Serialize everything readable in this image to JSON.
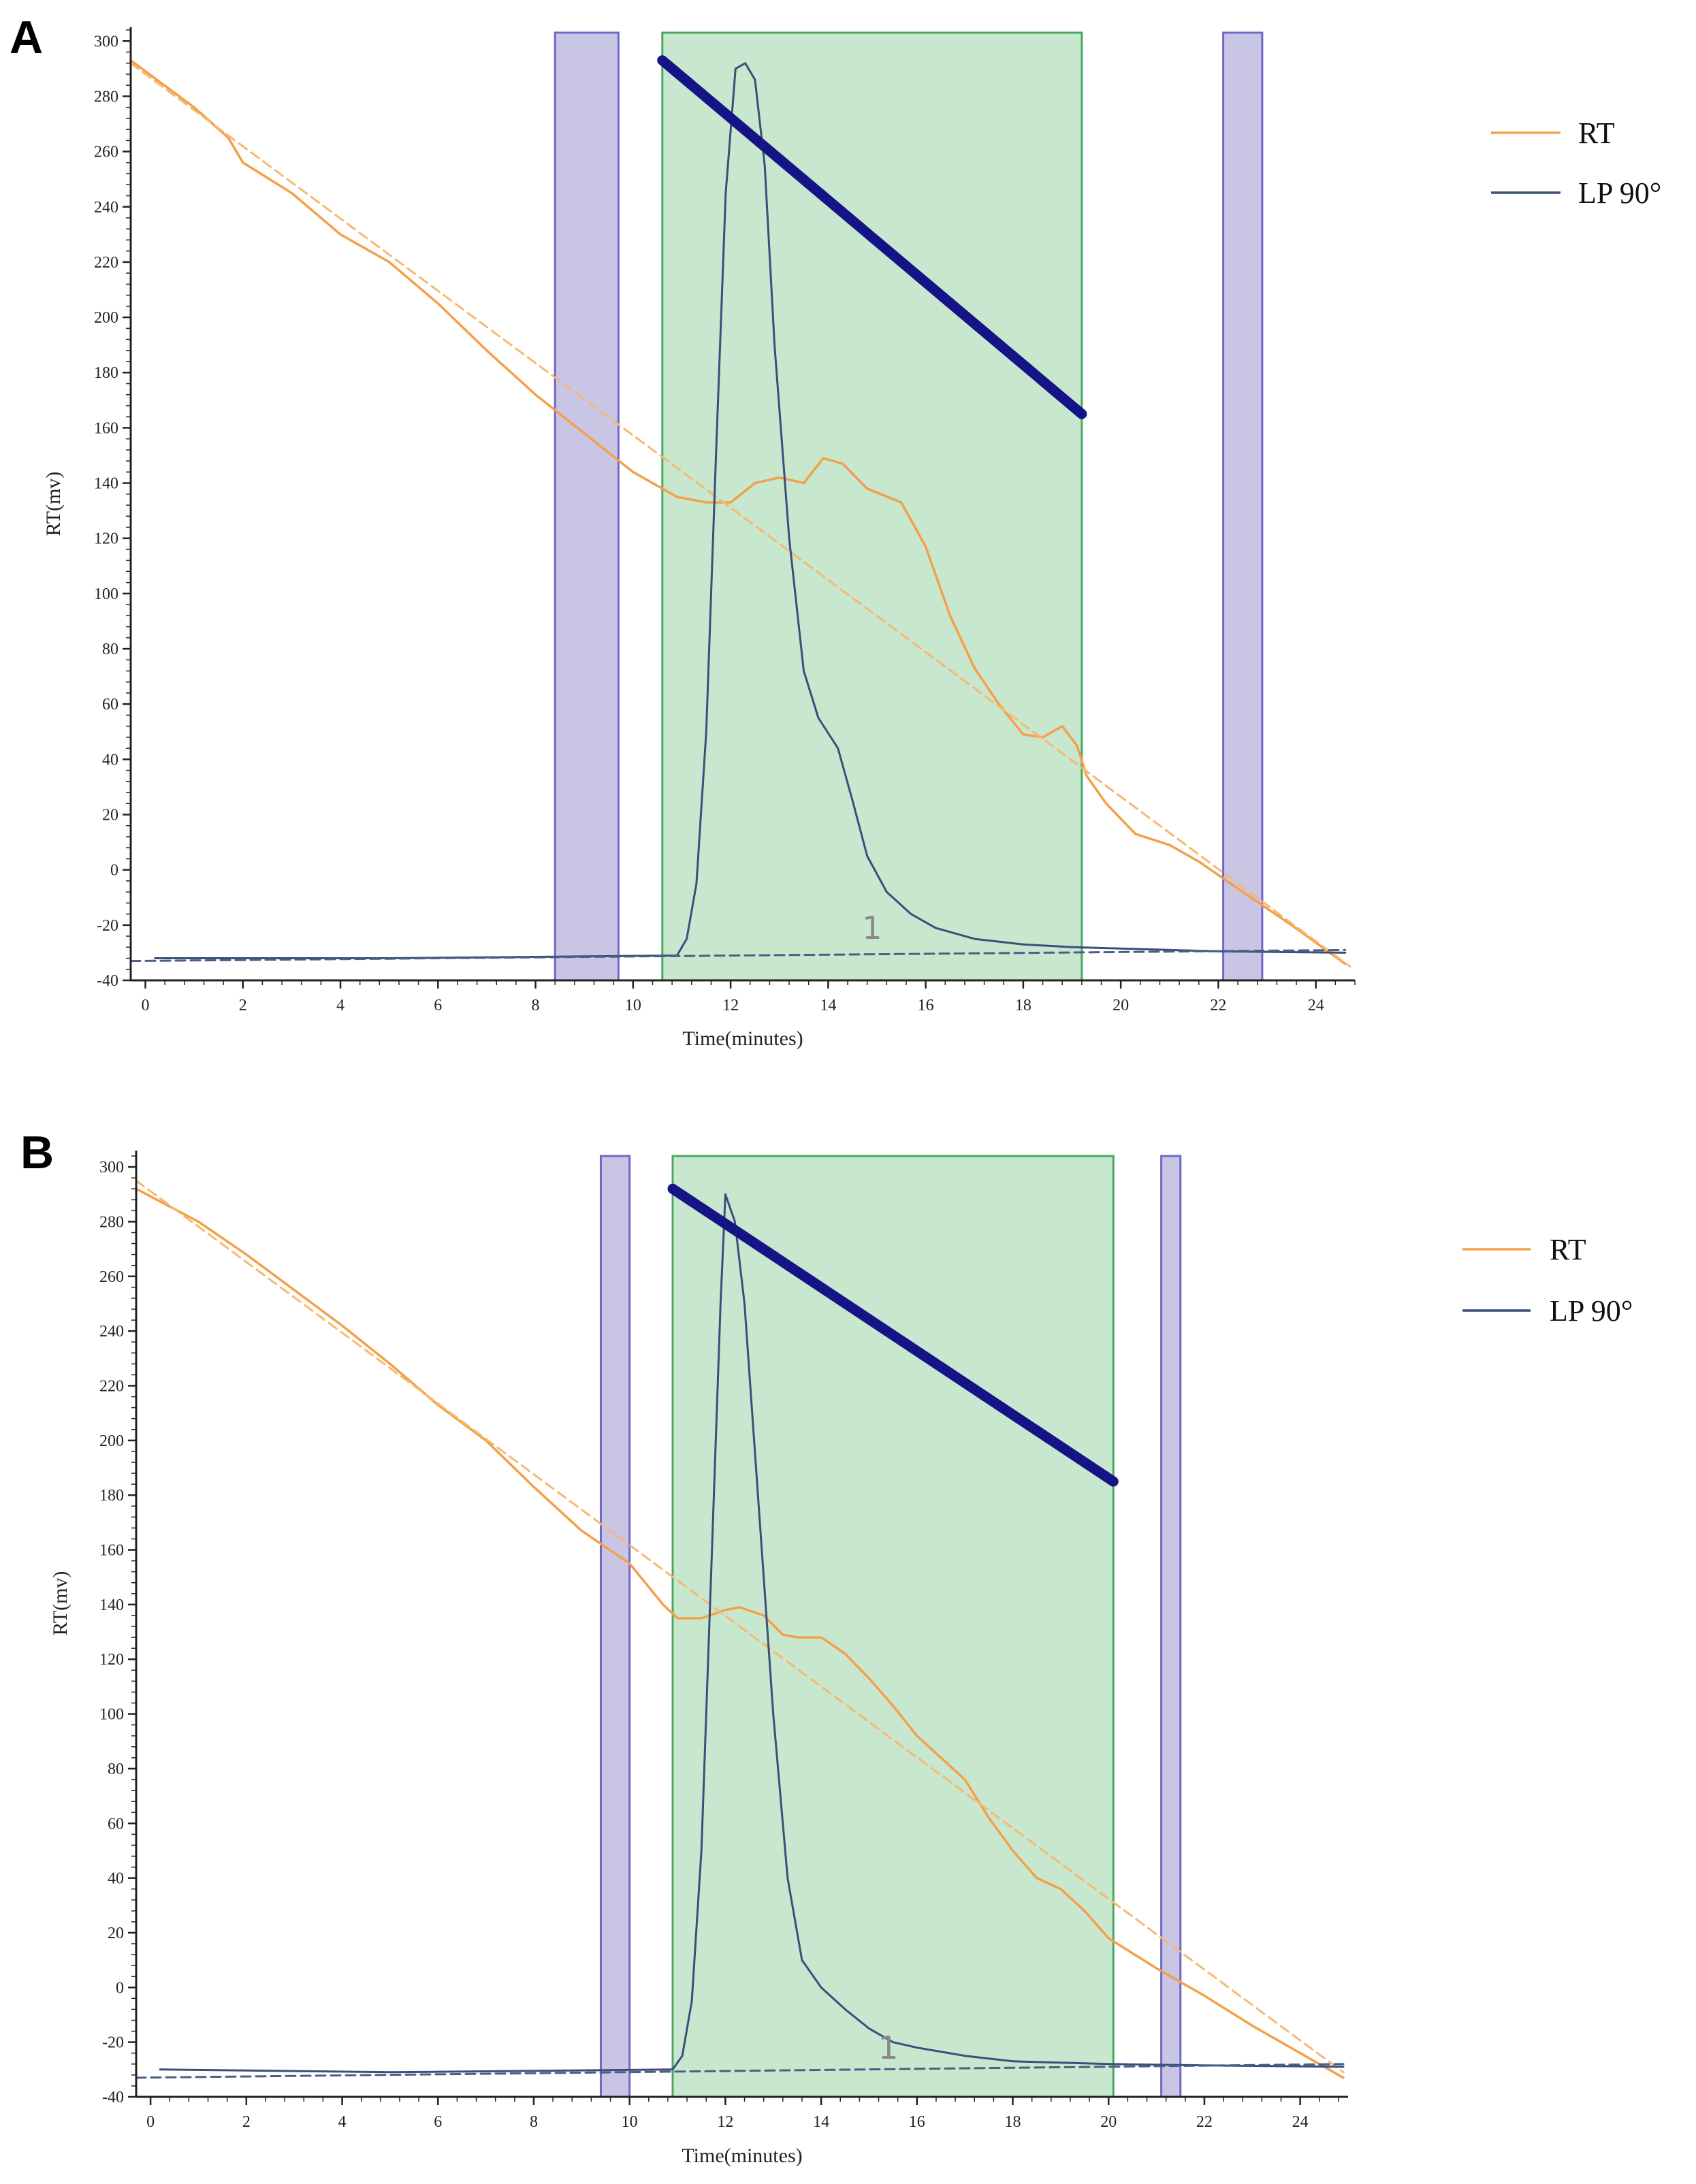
{
  "colors": {
    "rt": "#f4a04a",
    "rt_baseline": "#f7b870",
    "lp": "#3a4f7a",
    "lp_baseline": "#4a5e86",
    "regression": "#141486",
    "peak_region_fill": "#9bd4a8",
    "peak_region_stroke": "#4aa85e",
    "baseline_region_fill": "#b7b2dc",
    "baseline_region_stroke": "#6f68c8",
    "axis": "#222222"
  },
  "chart_data": [
    {
      "panel": "A",
      "type": "line",
      "xlabel": "Time(minutes)",
      "ylabel": "RT(mv)",
      "xlim": [
        -0.3,
        24.8
      ],
      "ylim": [
        -40,
        305
      ],
      "xticks": [
        0,
        2,
        4,
        6,
        8,
        10,
        12,
        14,
        16,
        18,
        20,
        22,
        24
      ],
      "yticks": [
        -40,
        -20,
        0,
        20,
        40,
        60,
        80,
        100,
        120,
        140,
        160,
        180,
        200,
        220,
        240,
        260,
        280,
        300
      ],
      "legend": [
        {
          "name": "RT",
          "color_key": "rt"
        },
        {
          "name": "LP  90°",
          "color_key": "lp"
        }
      ],
      "peak_label": "1",
      "peak_label_pos": [
        14.9,
        -25
      ],
      "baseline_regions": [
        [
          8.4,
          9.7
        ],
        [
          22.1,
          22.9
        ]
      ],
      "peak_region": [
        10.6,
        19.2
      ],
      "series": [
        {
          "name": "RT",
          "x": [
            -0.3,
            1.0,
            1.7,
            2.0,
            3.0,
            4.0,
            5.0,
            6.0,
            7.0,
            8.0,
            9.0,
            10.0,
            10.9,
            11.5,
            12.0,
            12.5,
            13.0,
            13.5,
            13.9,
            14.3,
            14.8,
            15.5,
            16.0,
            16.5,
            17.0,
            17.5,
            18.0,
            18.4,
            18.8,
            19.1,
            19.3,
            19.7,
            20.3,
            21.0,
            21.6,
            22.5,
            23.5,
            24.6
          ],
          "values": [
            293,
            276,
            265,
            256,
            245,
            230,
            220,
            205,
            188,
            172,
            158,
            144,
            135,
            133,
            133,
            140,
            142,
            140,
            149,
            147,
            138,
            133,
            117,
            92,
            73,
            60,
            49,
            48,
            52,
            45,
            34,
            24,
            13,
            9,
            3,
            -8,
            -20,
            -34
          ]
        },
        {
          "name": "RT baseline",
          "style": "dashed",
          "x": [
            -0.3,
            24.7
          ],
          "values": [
            292,
            -35
          ]
        },
        {
          "name": "LP 90°",
          "x": [
            0.2,
            5.0,
            10.9,
            11.1,
            11.3,
            11.5,
            11.7,
            11.9,
            12.1,
            12.3,
            12.5,
            12.7,
            12.9,
            13.2,
            13.5,
            13.8,
            14.2,
            14.5,
            14.8,
            15.2,
            15.7,
            16.2,
            17.0,
            18.0,
            19.0,
            20.0,
            22.0,
            24.6
          ],
          "values": [
            -32,
            -32,
            -31,
            -25,
            -5,
            50,
            150,
            245,
            290,
            292,
            286,
            255,
            190,
            120,
            72,
            55,
            44,
            25,
            5,
            -8,
            -16,
            -21,
            -25,
            -27,
            -28,
            -28.5,
            -29.5,
            -30
          ]
        },
        {
          "name": "LP baseline",
          "style": "dashed",
          "x": [
            -0.3,
            24.6
          ],
          "values": [
            -33,
            -29
          ]
        },
        {
          "name": "Regression",
          "style": "thick",
          "x": [
            10.6,
            19.2
          ],
          "values": [
            293,
            165
          ]
        }
      ]
    },
    {
      "panel": "B",
      "type": "line",
      "xlabel": "Time(minutes)",
      "ylabel": "RT(mv)",
      "xlim": [
        -0.3,
        25.0
      ],
      "ylim": [
        -40,
        306
      ],
      "xticks": [
        0,
        2,
        4,
        6,
        8,
        10,
        12,
        14,
        16,
        18,
        20,
        22,
        24
      ],
      "yticks": [
        -40,
        -20,
        0,
        20,
        40,
        60,
        80,
        100,
        120,
        140,
        160,
        180,
        200,
        220,
        240,
        260,
        280,
        300
      ],
      "legend": [
        {
          "name": "RT",
          "color_key": "rt"
        },
        {
          "name": "LP  90°",
          "color_key": "lp"
        }
      ],
      "peak_label": "1",
      "peak_label_pos": [
        15.4,
        -26
      ],
      "baseline_regions": [
        [
          9.4,
          10.0
        ],
        [
          21.1,
          21.5
        ]
      ],
      "peak_region": [
        10.9,
        20.1
      ],
      "series": [
        {
          "name": "RT",
          "x": [
            -0.3,
            1.0,
            2.0,
            3.0,
            4.0,
            5.0,
            6.0,
            7.0,
            8.0,
            9.0,
            10.0,
            10.7,
            11.0,
            11.5,
            12.0,
            12.3,
            12.8,
            13.2,
            13.5,
            14.0,
            14.5,
            15.0,
            15.5,
            16.0,
            17.0,
            17.5,
            18.0,
            18.5,
            19.0,
            19.5,
            20.0,
            21.0,
            22.0,
            23.0,
            24.0,
            24.9
          ],
          "values": [
            292,
            280,
            268,
            255,
            242,
            228,
            213,
            200,
            183,
            167,
            155,
            140,
            135,
            135,
            138,
            139,
            136,
            129,
            128,
            128,
            122,
            113,
            103,
            92,
            76,
            62,
            50,
            40,
            36,
            28,
            18,
            7,
            -3,
            -14,
            -24,
            -33
          ]
        },
        {
          "name": "RT baseline",
          "style": "dashed",
          "x": [
            -0.3,
            24.9
          ],
          "values": [
            295,
            -31
          ]
        },
        {
          "name": "LP 90°",
          "x": [
            0.2,
            5.0,
            10.9,
            11.1,
            11.3,
            11.5,
            11.7,
            11.9,
            12.0,
            12.2,
            12.4,
            12.6,
            12.8,
            13.0,
            13.3,
            13.6,
            14.0,
            14.5,
            15.0,
            15.5,
            16.0,
            17.0,
            18.0,
            19.0,
            20.0,
            22.0,
            24.9
          ],
          "values": [
            -30,
            -31,
            -30,
            -25,
            -5,
            50,
            150,
            250,
            290,
            280,
            250,
            200,
            150,
            100,
            40,
            10,
            0,
            -8,
            -15,
            -20,
            -22,
            -25,
            -27,
            -27.5,
            -28,
            -28.5,
            -29
          ]
        },
        {
          "name": "LP baseline",
          "style": "dashed",
          "x": [
            -0.3,
            24.9
          ],
          "values": [
            -33,
            -28
          ]
        },
        {
          "name": "Regression",
          "style": "thick",
          "x": [
            10.9,
            20.1
          ],
          "values": [
            292,
            185
          ]
        }
      ]
    }
  ]
}
